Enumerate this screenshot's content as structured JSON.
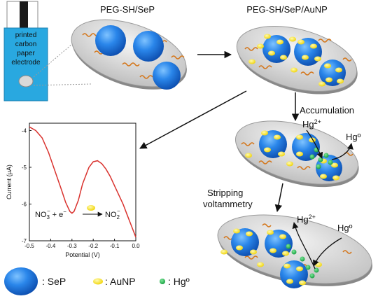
{
  "labels": {
    "peg_sh_sep": "PEG-SH/SeP",
    "peg_sh_sep_aunp": "PEG-SH/SeP/AuNP",
    "accumulation": "Accumulation",
    "stripping_line1": "Stripping",
    "stripping_line2": "voltammetry",
    "hg2_base_1": "Hg",
    "hg2_sup_1": "2+",
    "hg0_1": "Hgº",
    "hg2_base_2": "Hg",
    "hg2_sup_2": "2+",
    "hg0_2": "Hgº"
  },
  "electrode": {
    "line1": "printed",
    "line2": "carbon",
    "line3": "paper",
    "line4": "electrode"
  },
  "legend": {
    "sep": ": SeP",
    "aunp": ": AuNP",
    "hg0": ": Hgº"
  },
  "reaction": {
    "left": "NO",
    "left_sub": "3",
    "left_sup": "−",
    "plus": " + e",
    "e_sup": "−",
    "right": "NO",
    "right_sub": "2",
    "right_sup": "−"
  },
  "colors": {
    "sep_blue": "#1f6fd6",
    "aunp_yellow": "#f5e000",
    "hg_green": "#19b548",
    "peg_orange": "#d4761a",
    "electrode_cyan": "#29a8e0",
    "curve_red": "#d9322e"
  },
  "chart_data": {
    "type": "line",
    "xlabel": "Potential (V)",
    "ylabel": "Current (μA)",
    "xlim": [
      -0.5,
      0.0
    ],
    "ylim": [
      -7,
      -3.8
    ],
    "x_ticks": [
      "-0.5",
      "-0.4",
      "-0.3",
      "-0.2",
      "-0.1",
      "0.0"
    ],
    "y_ticks": [
      "-4",
      "-5",
      "-6",
      "-7"
    ],
    "series": [
      {
        "x": [
          -0.5,
          -0.47,
          -0.44,
          -0.41,
          -0.38,
          -0.35,
          -0.33,
          -0.31,
          -0.3,
          -0.29,
          -0.27,
          -0.25,
          -0.22,
          -0.2,
          -0.18,
          -0.16,
          -0.14,
          -0.12,
          -0.1,
          -0.08,
          -0.06,
          -0.04,
          -0.02,
          0.0
        ],
        "y": [
          -3.9,
          -4.0,
          -4.2,
          -4.6,
          -5.1,
          -5.6,
          -5.95,
          -6.2,
          -6.25,
          -6.2,
          -5.9,
          -5.45,
          -5.0,
          -4.85,
          -4.82,
          -4.9,
          -5.05,
          -5.25,
          -5.5,
          -5.75,
          -6.0,
          -6.3,
          -6.6,
          -6.9
        ]
      }
    ]
  }
}
